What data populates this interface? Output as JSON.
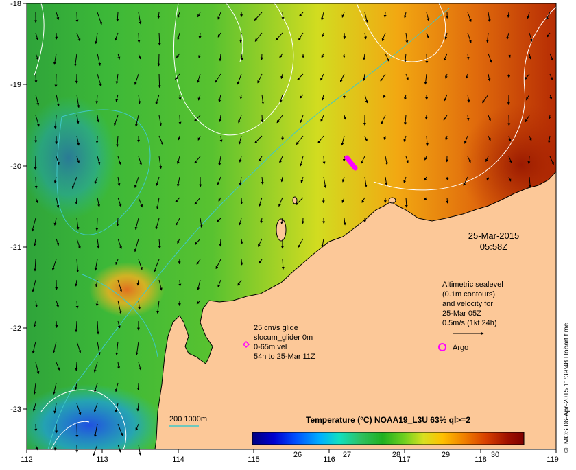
{
  "map": {
    "x_ticks": [
      "112",
      "113",
      "114",
      "115",
      "116",
      "117",
      "118",
      "119"
    ],
    "y_ticks": [
      "-18",
      "-19",
      "-20",
      "-21",
      "-22",
      "-23"
    ],
    "date_line1": "25-Mar-2015",
    "date_line2": "05:58Z",
    "copyright": "© IMOS 06-Apr-2015 11:39:48 Hobart time"
  },
  "legend": {
    "depth_label": "200  1000m",
    "glider": {
      "line1": "25 cm/s glide",
      "line2": "slocum_glider 0m",
      "line3": "0-65m vel",
      "line4": "54h to 25-Mar 11Z"
    },
    "sealevel": {
      "line1": "Altimetric sealevel",
      "line2": "(0.1m contours)",
      "line3": "and velocity for",
      "line4": "25-Mar 05Z",
      "line5": "0.5m/s (1kt 24h)"
    },
    "argo_label": "Argo"
  },
  "colorbar": {
    "title": "Temperature (°C) NOAA19_L3U 63% ql>=2",
    "ticks": [
      "26",
      "27",
      "28",
      "29",
      "30"
    ],
    "stops": [
      "#00007f",
      "#0000d0",
      "#0050ff",
      "#00b0ff",
      "#10e0c0",
      "#30c060",
      "#20b020",
      "#70d020",
      "#d8e020",
      "#ffc000",
      "#f08000",
      "#d84000",
      "#a01000",
      "#7f0000"
    ]
  },
  "colors": {
    "land": "#fcc898",
    "glider_track": "#ff00ff",
    "argo": "#ff00ff",
    "contour": "#ffffff",
    "isobath": "#40c8c8"
  }
}
